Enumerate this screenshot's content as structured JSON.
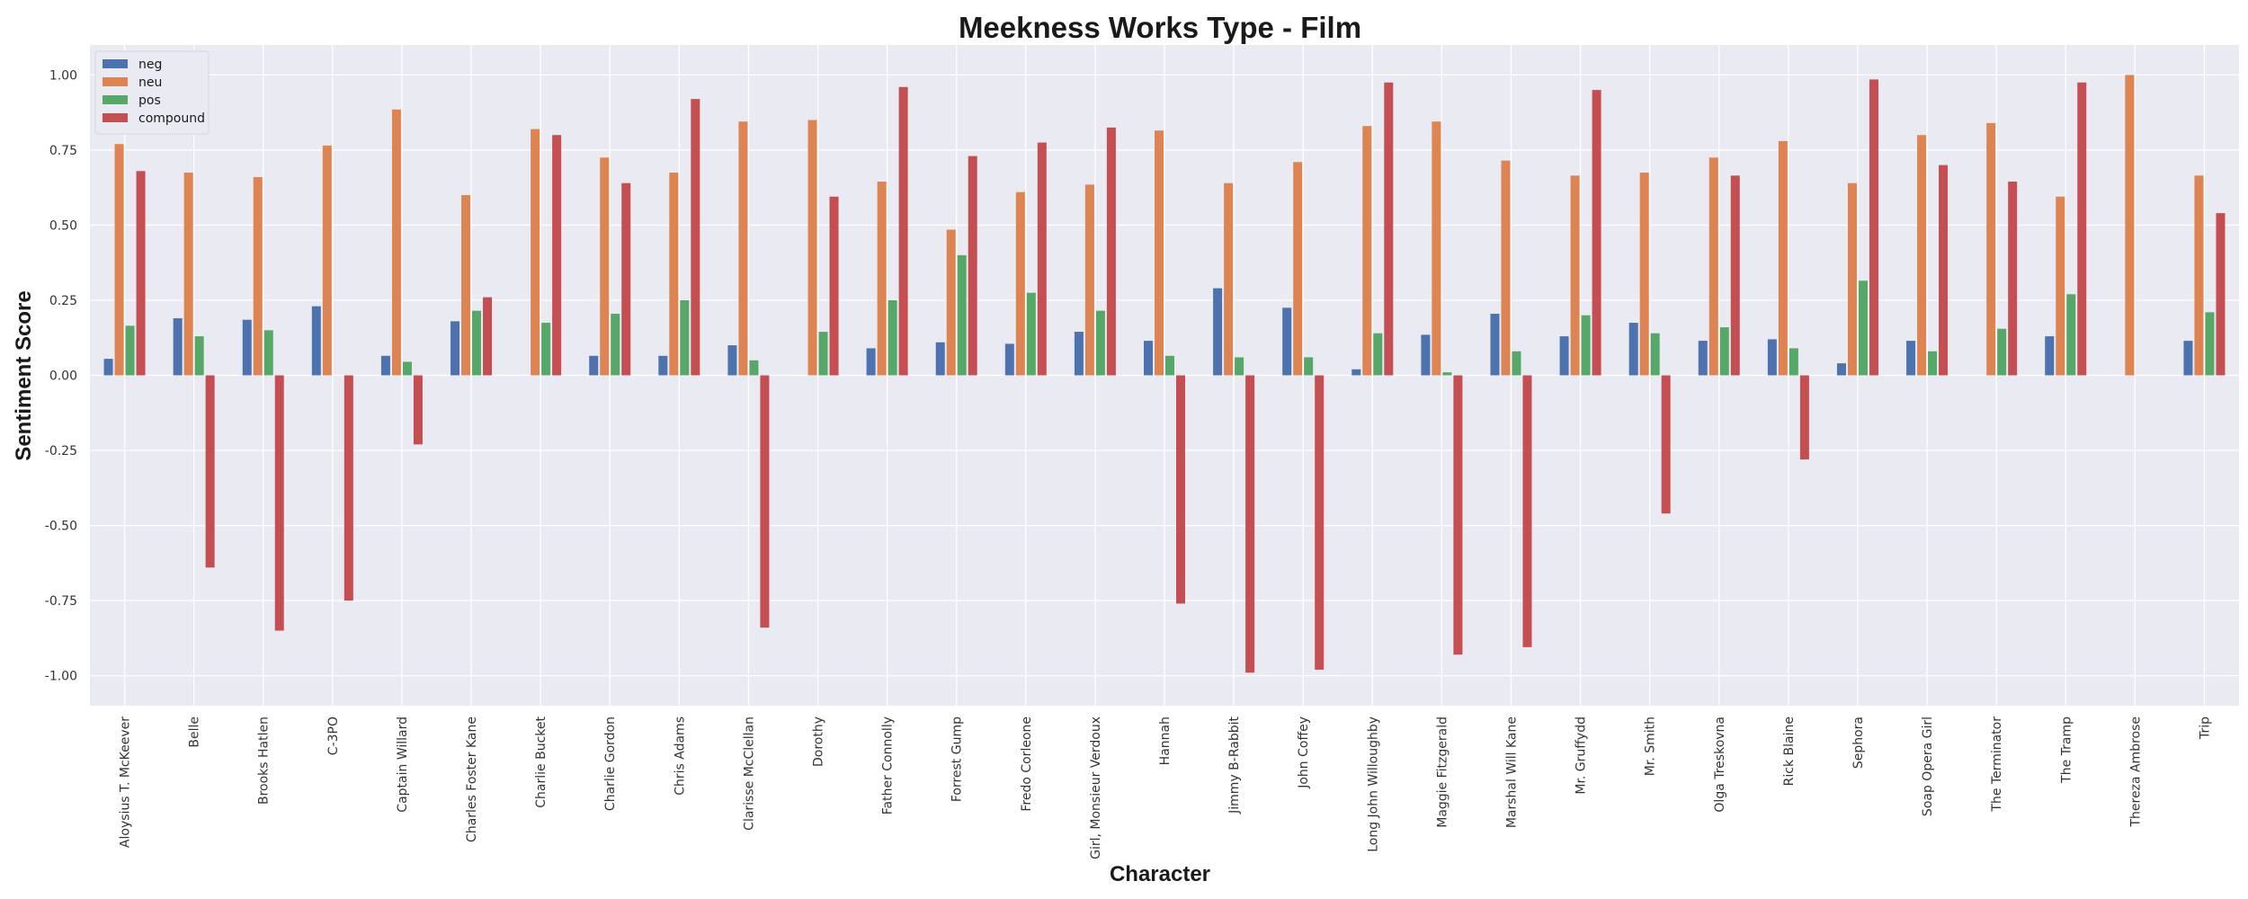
{
  "chart_data": {
    "type": "bar",
    "title": "Meekness Works Type - Film",
    "xlabel": "Character",
    "ylabel": "Sentiment Score",
    "ylim": [
      -1.1,
      1.1
    ],
    "yticks": [
      -1.0,
      -0.75,
      -0.5,
      -0.25,
      0.0,
      0.25,
      0.5,
      0.75,
      1.0
    ],
    "ytick_labels": [
      "-1.00",
      "-0.75",
      "-0.50",
      "-0.25",
      "0.00",
      "0.25",
      "0.50",
      "0.75",
      "1.00"
    ],
    "grid": true,
    "legend_position": "top-left",
    "categories": [
      "Aloysius T. McKeever",
      "Belle",
      "Brooks Hatlen",
      "C-3PO",
      "Captain Willard",
      "Charles Foster Kane",
      "Charlie Bucket",
      "Charlie Gordon",
      "Chris Adams",
      "Clarisse McClellan",
      "Dorothy",
      "Father Connolly",
      "Forrest Gump",
      "Fredo Corleone",
      "Girl, Monsieur Verdoux",
      "Hannah",
      "Jimmy B-Rabbit",
      "John Coffey",
      "Long John Willoughby",
      "Maggie Fitzgerald",
      "Marshal Will Kane",
      "Mr. Gruffydd",
      "Mr. Smith",
      "Olga Treskovna",
      "Rick Blaine",
      "Sephora",
      "Soap Opera Girl",
      "The Terminator",
      "The Tramp",
      "Thereza Ambrose",
      "Trip"
    ],
    "series": [
      {
        "name": "neg",
        "color": "#4c72b0",
        "values": [
          0.055,
          0.19,
          0.185,
          0.23,
          0.065,
          0.18,
          0.0,
          0.065,
          0.065,
          0.1,
          0.0,
          0.09,
          0.11,
          0.105,
          0.145,
          0.115,
          0.29,
          0.225,
          0.02,
          0.135,
          0.205,
          0.13,
          0.175,
          0.115,
          0.12,
          0.04,
          0.115,
          0.0,
          0.13,
          0.0,
          0.115
        ]
      },
      {
        "name": "neu",
        "color": "#dd8452",
        "values": [
          0.77,
          0.675,
          0.66,
          0.765,
          0.885,
          0.6,
          0.82,
          0.725,
          0.675,
          0.845,
          0.85,
          0.645,
          0.485,
          0.61,
          0.635,
          0.815,
          0.64,
          0.71,
          0.83,
          0.845,
          0.715,
          0.665,
          0.675,
          0.725,
          0.78,
          0.64,
          0.8,
          0.84,
          0.595,
          1.0,
          0.665
        ]
      },
      {
        "name": "pos",
        "color": "#55a868",
        "values": [
          0.165,
          0.13,
          0.15,
          0.0,
          0.045,
          0.215,
          0.175,
          0.205,
          0.25,
          0.05,
          0.145,
          0.25,
          0.4,
          0.275,
          0.215,
          0.065,
          0.06,
          0.06,
          0.14,
          0.01,
          0.08,
          0.2,
          0.14,
          0.16,
          0.09,
          0.315,
          0.08,
          0.155,
          0.27,
          0.0,
          0.21
        ]
      },
      {
        "name": "compound",
        "color": "#c44e52",
        "values": [
          0.68,
          -0.64,
          -0.85,
          -0.75,
          -0.23,
          0.26,
          0.8,
          0.64,
          0.92,
          -0.84,
          0.595,
          0.96,
          0.73,
          0.775,
          0.825,
          -0.76,
          -0.99,
          -0.98,
          0.975,
          -0.93,
          -0.905,
          0.95,
          -0.46,
          0.665,
          -0.28,
          0.985,
          0.7,
          0.645,
          0.975,
          0.0,
          0.54
        ]
      }
    ]
  }
}
